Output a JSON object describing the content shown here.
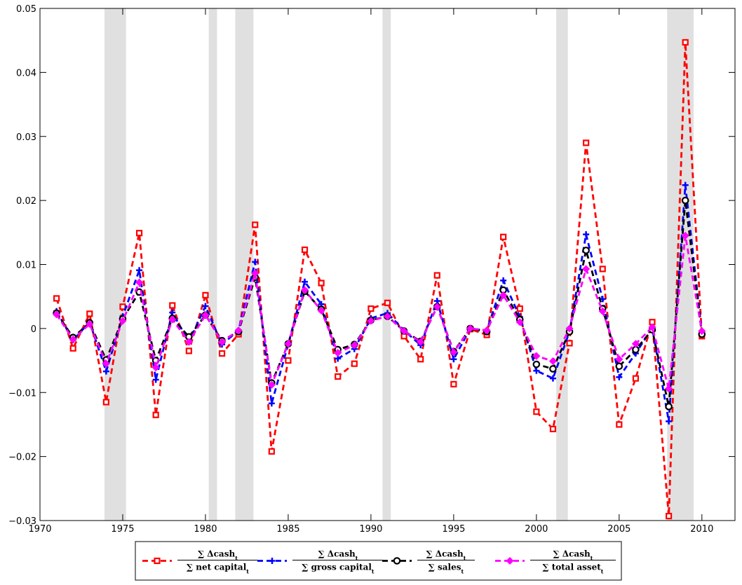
{
  "chart_data": {
    "type": "line",
    "title": "",
    "xlabel": "",
    "ylabel": "",
    "xlim": [
      1970,
      2012
    ],
    "ylim": [
      -0.03,
      0.05
    ],
    "grid": false,
    "legend_position": "bottom-center",
    "x_ticks": [
      "1970",
      "1975",
      "1980",
      "1985",
      "1990",
      "1995",
      "2000",
      "2005",
      "2010"
    ],
    "y_ticks": [
      "−0.03",
      "−0.02",
      "−0.01",
      "0",
      "0.01",
      "0.02",
      "0.03",
      "0.04",
      "0.05"
    ],
    "x_tick_values": [
      1970,
      1975,
      1980,
      1985,
      1990,
      1995,
      2000,
      2005,
      2010
    ],
    "y_tick_values": [
      -0.03,
      -0.02,
      -0.01,
      0,
      0.01,
      0.02,
      0.03,
      0.04,
      0.05
    ],
    "recession_bands": [
      [
        1973.9,
        1975.2
      ],
      [
        1980.2,
        1980.7
      ],
      [
        1981.8,
        1982.9
      ],
      [
        1990.7,
        1991.2
      ],
      [
        2001.2,
        2001.9
      ],
      [
        2007.9,
        2009.5
      ]
    ],
    "x": [
      1971,
      1972,
      1973,
      1974,
      1975,
      1976,
      1977,
      1978,
      1979,
      1980,
      1981,
      1982,
      1983,
      1984,
      1985,
      1986,
      1987,
      1988,
      1989,
      1990,
      1991,
      1992,
      1993,
      1994,
      1995,
      1996,
      1997,
      1998,
      1999,
      2000,
      2001,
      2002,
      2003,
      2004,
      2005,
      2006,
      2007,
      2008,
      2009,
      2010
    ],
    "series": [
      {
        "name_num": "∑ Δcash",
        "name_den": "∑ net capital",
        "color": "#ff0000",
        "marker": "square",
        "values": [
          0.0047,
          -0.0031,
          0.0023,
          -0.0115,
          0.0034,
          0.0149,
          -0.0135,
          0.0036,
          -0.0035,
          0.0052,
          -0.0039,
          -0.0009,
          0.0162,
          -0.0192,
          -0.005,
          0.0123,
          0.0071,
          -0.0075,
          -0.0055,
          0.0031,
          0.004,
          -0.0012,
          -0.0048,
          0.0083,
          -0.0087,
          -0.0001,
          -0.001,
          0.0143,
          0.0031,
          -0.013,
          -0.0157,
          -0.0023,
          0.029,
          0.0093,
          -0.015,
          -0.0078,
          0.001,
          -0.0293,
          0.0447,
          -0.0012
        ]
      },
      {
        "name_num": "∑ Δcash",
        "name_den": "∑ gross capital",
        "color": "#0000ff",
        "marker": "plus",
        "values": [
          0.0027,
          -0.0018,
          0.001,
          -0.0067,
          0.0019,
          0.0091,
          -0.008,
          0.0025,
          -0.0021,
          0.0035,
          -0.0025,
          -0.0003,
          0.0104,
          -0.0117,
          -0.0025,
          0.0073,
          0.0038,
          -0.0047,
          -0.0032,
          0.0016,
          0.0024,
          -0.0003,
          -0.0026,
          0.0043,
          -0.0048,
          0.0,
          -0.0003,
          0.0075,
          0.0018,
          -0.0066,
          -0.0078,
          -0.0005,
          0.0147,
          0.0046,
          -0.0076,
          -0.0039,
          0.0001,
          -0.0145,
          0.0224,
          -0.0007
        ]
      },
      {
        "name_num": "∑ Δcash",
        "name_den": "∑ sales",
        "color": "#000000",
        "marker": "circle",
        "values": [
          0.0024,
          -0.0014,
          0.0009,
          -0.0049,
          0.0015,
          0.0057,
          -0.005,
          0.0016,
          -0.0013,
          0.0021,
          -0.0019,
          -0.0005,
          0.008,
          -0.0085,
          -0.0024,
          0.0058,
          0.003,
          -0.0033,
          -0.0025,
          0.0013,
          0.0019,
          -0.0004,
          -0.002,
          0.0034,
          -0.0036,
          0.0,
          -0.0005,
          0.006,
          0.0014,
          -0.0056,
          -0.0063,
          -0.0005,
          0.0122,
          0.0031,
          -0.0059,
          -0.0033,
          -0.0002,
          -0.0122,
          0.02,
          -0.0009
        ]
      },
      {
        "name_num": "∑ Δcash",
        "name_den": "∑ total asset",
        "color": "#ff00ff",
        "marker": "diamond",
        "values": [
          0.0022,
          -0.0017,
          0.0007,
          -0.0055,
          0.0012,
          0.0072,
          -0.0061,
          0.0014,
          -0.0021,
          0.0021,
          -0.0021,
          -0.0003,
          0.0086,
          -0.0088,
          -0.0024,
          0.006,
          0.0028,
          -0.0038,
          -0.0026,
          0.0012,
          0.0019,
          -0.0004,
          -0.0021,
          0.0034,
          -0.0037,
          0.0,
          -0.0003,
          0.0052,
          0.001,
          -0.0043,
          -0.0051,
          0.0,
          0.0093,
          0.0027,
          -0.0048,
          -0.0024,
          0.0002,
          -0.0094,
          0.0145,
          -0.0004
        ]
      }
    ]
  }
}
